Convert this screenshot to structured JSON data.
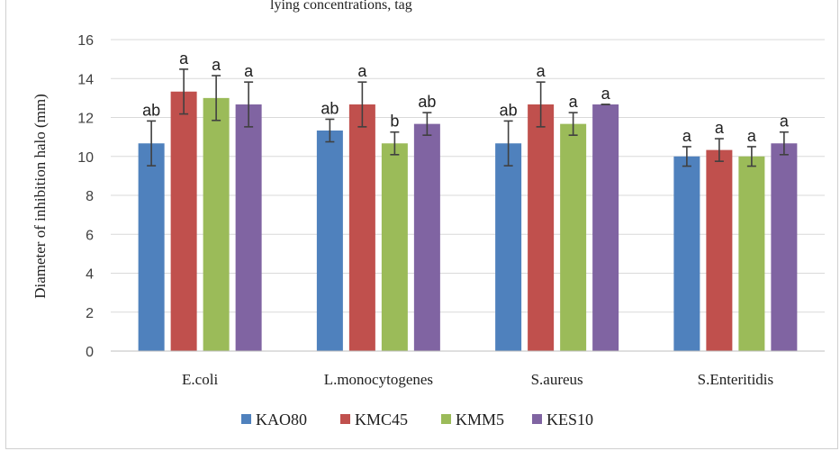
{
  "top_strip_text": "lying concentrations, tag",
  "chart_data": {
    "type": "bar",
    "ylabel": "Diameter of inhibition halo (mm)",
    "ylim": [
      0,
      16
    ],
    "yticks": [
      0,
      2,
      4,
      6,
      8,
      10,
      12,
      14,
      16
    ],
    "grid": true,
    "legend_position": "bottom",
    "categories": [
      "E.coli",
      "L.monocytogenes",
      "S.aureus",
      "S.Enteritidis"
    ],
    "series": [
      {
        "name": "KAO80",
        "color": "#4f81bd",
        "values": [
          10.67,
          11.33,
          10.67,
          10.0
        ],
        "errors": [
          1.15,
          0.58,
          1.15,
          0.5
        ],
        "labels": [
          "ab",
          "ab",
          "ab",
          "a"
        ]
      },
      {
        "name": "KMC45",
        "color": "#c0504d",
        "values": [
          13.33,
          12.67,
          12.67,
          10.33
        ],
        "errors": [
          1.15,
          1.15,
          1.15,
          0.58
        ],
        "labels": [
          "a",
          "a",
          "a",
          "a"
        ]
      },
      {
        "name": "KMM5",
        "color": "#9bbb59",
        "values": [
          13.0,
          10.67,
          11.67,
          10.0
        ],
        "errors": [
          1.15,
          0.58,
          0.58,
          0.5
        ],
        "labels": [
          "a",
          "b",
          "a",
          "a"
        ]
      },
      {
        "name": "KES10",
        "color": "#8064a2",
        "values": [
          12.67,
          11.67,
          12.67,
          10.67
        ],
        "errors": [
          1.15,
          0.58,
          0.0,
          0.58
        ],
        "labels": [
          "a",
          "ab",
          "a",
          "a"
        ]
      }
    ]
  }
}
